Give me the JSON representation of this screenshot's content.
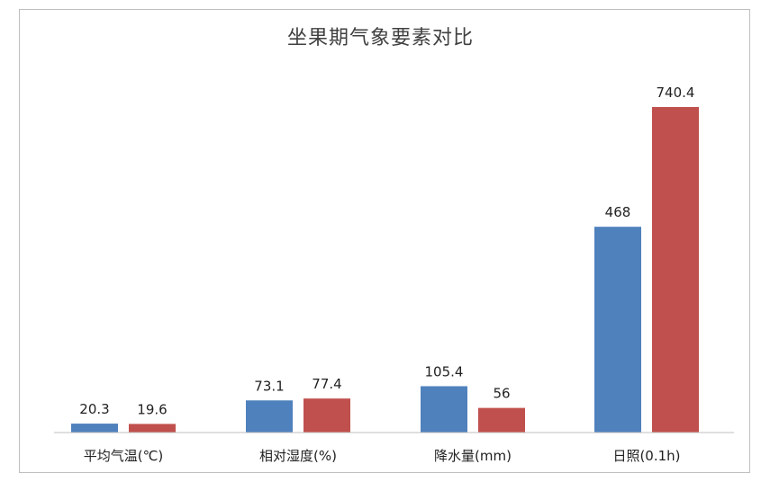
{
  "chart_data": {
    "type": "bar",
    "title": "坐果期气象要素对比",
    "categories": [
      "平均气温(℃)",
      "相对湿度(%)",
      "降水量(mm)",
      "日照(0.1h)"
    ],
    "series": [
      {
        "values": [
          20.3,
          73.1,
          105.4,
          468
        ],
        "labels": [
          "20.3",
          "73.1",
          "105.4",
          "468"
        ],
        "color": "#4f81bd"
      },
      {
        "values": [
          19.6,
          77.4,
          56,
          740.4
        ],
        "labels": [
          "19.6",
          "77.4",
          "56",
          "740.4"
        ],
        "color": "#c0504d"
      }
    ],
    "ylim": [
      0,
      800
    ],
    "grid": false,
    "legend": "none"
  }
}
